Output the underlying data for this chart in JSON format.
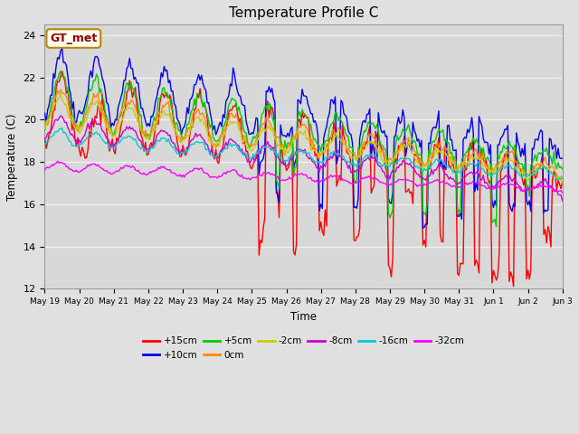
{
  "title": "Temperature Profile C",
  "xlabel": "Time",
  "ylabel": "Temperature (C)",
  "ylim": [
    12,
    24.5
  ],
  "xlim": [
    0,
    360
  ],
  "background_color": "#e0e0e0",
  "plot_bg_color": "#d8d8d8",
  "grid_color": "#f0f0f0",
  "series": {
    "+15cm": {
      "color": "#ff0000",
      "lw": 1.0
    },
    "+10cm": {
      "color": "#0000ee",
      "lw": 1.0
    },
    "+5cm": {
      "color": "#00cc00",
      "lw": 1.0
    },
    "0cm": {
      "color": "#ff8800",
      "lw": 1.0
    },
    "-2cm": {
      "color": "#cccc00",
      "lw": 1.0
    },
    "-8cm": {
      "color": "#cc00cc",
      "lw": 1.0
    },
    "-16cm": {
      "color": "#00cccc",
      "lw": 1.0
    },
    "-32cm": {
      "color": "#ff00ff",
      "lw": 1.0
    }
  },
  "annotation": {
    "text": "GT_met",
    "fontsize": 9,
    "color": "#8b0000",
    "bg": "#fffff0",
    "border_color": "#b8860b"
  },
  "x_tick_labels": [
    "May 19",
    "May 20",
    "May 21",
    "May 22",
    "May 23",
    "May 24",
    "May 25",
    "May 26",
    "May 27",
    "May 28",
    "May 29",
    "May 30",
    "May 31",
    "Jun 1",
    "Jun 2",
    "Jun 3"
  ],
  "x_tick_positions": [
    0,
    24,
    48,
    72,
    96,
    120,
    144,
    168,
    192,
    216,
    240,
    264,
    288,
    312,
    336,
    360
  ],
  "y_ticks": [
    12,
    14,
    16,
    18,
    20,
    22,
    24
  ],
  "legend_order": [
    "+15cm",
    "+10cm",
    "+5cm",
    "0cm",
    "-2cm",
    "-8cm",
    "-16cm",
    "-32cm"
  ],
  "legend_row1": [
    "+15cm",
    "+10cm",
    "+5cm",
    "0cm",
    "-2cm",
    "-8cm"
  ],
  "legend_row2": [
    "-16cm",
    "-32cm"
  ]
}
